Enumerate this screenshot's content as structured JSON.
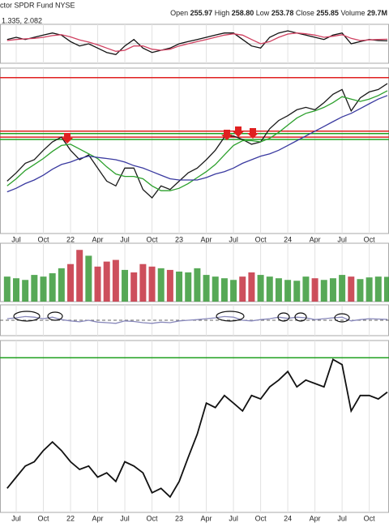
{
  "header": {
    "symbol": "ctor SPDR Fund NYSE",
    "quote": [
      {
        "label": "Open",
        "value": "255.97"
      },
      {
        "label": "High",
        "value": "258.80"
      },
      {
        "label": "Low",
        "value": "253.78"
      },
      {
        "label": "Close",
        "value": "255.85"
      },
      {
        "label": "Volume",
        "value": "29.7M"
      }
    ]
  },
  "chart_data": [
    {
      "type": "line",
      "legend_text": "1.335, 2.082",
      "ylim": [
        -9,
        9
      ],
      "series": [
        {
          "color": "#111111",
          "values": [
            2,
            3,
            2,
            3,
            4,
            5,
            4,
            1,
            -1,
            0,
            -2,
            -4,
            -5,
            -1,
            2,
            -2,
            -4,
            -3,
            -2,
            0,
            1,
            2,
            3,
            4,
            5,
            5,
            2,
            -1,
            -2,
            3,
            5,
            6,
            5,
            4,
            3,
            2,
            4,
            5,
            0,
            1,
            2,
            1.5,
            1.335
          ]
        },
        {
          "color": "#d04060",
          "values": [
            1.5,
            2,
            2.3,
            2.5,
            3,
            3.8,
            4.2,
            3.2,
            1.8,
            0.8,
            -0.5,
            -2,
            -3.5,
            -3,
            -1,
            -1,
            -2.5,
            -3,
            -2.5,
            -1,
            0,
            1,
            2,
            3,
            4,
            4.6,
            4,
            2,
            0,
            1,
            3,
            4.5,
            5,
            4.6,
            4,
            3,
            3.5,
            4.2,
            2.5,
            1.5,
            1.8,
            2,
            2.082
          ]
        }
      ]
    },
    {
      "type": "line",
      "ylim": [
        130,
        269
      ],
      "categories": [
        null,
        "Jul",
        null,
        null,
        "Oct",
        null,
        null,
        "22",
        null,
        null,
        "Apr",
        null,
        null,
        "Jul",
        null,
        null,
        "Oct",
        null,
        null,
        "23",
        null,
        null,
        "Apr",
        null,
        null,
        "Jul",
        null,
        null,
        "Oct",
        null,
        null,
        "24",
        null,
        null,
        "Apr",
        null,
        null,
        "Jul",
        null,
        null,
        "Oct",
        null,
        null
      ],
      "hlines": [
        {
          "value": 261,
          "color": "#e02020"
        },
        {
          "value": 216,
          "color": "#e02020"
        },
        {
          "value": 211,
          "color": "#e02020"
        },
        {
          "value": 214,
          "color": "#20a020"
        },
        {
          "value": 209,
          "color": "#20a020"
        }
      ],
      "series": [
        {
          "color": "#1a1a1a",
          "values": [
            174,
            181,
            189,
            192,
            200,
            207,
            211,
            200,
            192,
            196,
            185,
            174,
            170,
            185,
            185,
            167,
            160,
            170,
            167,
            174,
            181,
            185,
            192,
            200,
            211,
            212,
            209,
            205,
            207,
            218,
            225,
            229,
            234,
            236,
            234,
            240,
            247,
            251,
            233,
            244,
            249,
            251,
            256
          ]
        },
        {
          "color": "#2ca02c",
          "values": [
            170,
            176,
            183,
            188,
            193,
            199,
            204,
            205,
            201,
            197,
            193,
            186,
            180,
            178,
            178,
            176,
            170,
            166,
            166,
            168,
            172,
            177,
            182,
            188,
            196,
            204,
            208,
            208,
            207,
            210,
            215,
            221,
            227,
            231,
            233,
            236,
            240,
            245,
            243,
            241,
            243,
            246,
            250
          ]
        },
        {
          "color": "#3a3aa0",
          "values": [
            165,
            168,
            172,
            175,
            179,
            184,
            188,
            190,
            193,
            195,
            194,
            193,
            192,
            190,
            187,
            185,
            182,
            179,
            176,
            175,
            175,
            175,
            177,
            180,
            182,
            185,
            189,
            192,
            195,
            197,
            200,
            204,
            208,
            212,
            216,
            220,
            224,
            228,
            231,
            235,
            239,
            243,
            246
          ]
        }
      ]
    },
    {
      "type": "bar",
      "ylim": [
        0,
        70
      ],
      "values": [
        30,
        28,
        26,
        32,
        30,
        34,
        40,
        45,
        62,
        55,
        42,
        48,
        50,
        38,
        35,
        45,
        42,
        40,
        38,
        36,
        35,
        40,
        32,
        30,
        28,
        26,
        30,
        35,
        32,
        30,
        28,
        26,
        25,
        30,
        28,
        26,
        28,
        32,
        30,
        27,
        29,
        30,
        29.7
      ],
      "colors": [
        "#3a9a3a",
        "#3a9a3a",
        "#3a9a3a",
        "#3a9a3a",
        "#3a9a3a",
        "#3a9a3a",
        "#3a9a3a",
        "#c43040",
        "#c43040",
        "#3a9a3a",
        "#c43040",
        "#c43040",
        "#c43040",
        "#3a9a3a",
        "#c43040",
        "#c43040",
        "#c43040",
        "#3a9a3a",
        "#c43040",
        "#3a9a3a",
        "#3a9a3a",
        "#3a9a3a",
        "#3a9a3a",
        "#3a9a3a",
        "#3a9a3a",
        "#3a9a3a",
        "#c43040",
        "#c43040",
        "#3a9a3a",
        "#3a9a3a",
        "#3a9a3a",
        "#3a9a3a",
        "#3a9a3a",
        "#3a9a3a",
        "#c43040",
        "#3a9a3a",
        "#3a9a3a",
        "#3a9a3a",
        "#c43040",
        "#3a9a3a",
        "#3a9a3a",
        "#3a9a3a",
        "#3a9a3a"
      ]
    },
    {
      "type": "line",
      "ylim": [
        0,
        100
      ],
      "series": [
        {
          "color": "#8888bb",
          "values": [
            55,
            58,
            62,
            60,
            55,
            60,
            52,
            48,
            45,
            50,
            44,
            42,
            40,
            48,
            46,
            42,
            40,
            44,
            42,
            48,
            50,
            52,
            55,
            58,
            62,
            60,
            50,
            48,
            52,
            55,
            60,
            56,
            60,
            58,
            52,
            55,
            58,
            60,
            48,
            52,
            55,
            54,
            53
          ]
        }
      ]
    },
    {
      "type": "line",
      "ylim": [
        0,
        100
      ],
      "categories": [
        null,
        "Jul",
        null,
        null,
        "Oct",
        null,
        null,
        "22",
        null,
        null,
        "Apr",
        null,
        null,
        "Jul",
        null,
        null,
        "Oct",
        null,
        null,
        "23",
        null,
        null,
        "Apr",
        null,
        null,
        "Jul",
        null,
        null,
        "Oct",
        null,
        null,
        "24",
        null,
        null,
        "Apr",
        null,
        null,
        "Jul",
        null,
        null,
        "Oct",
        null,
        null
      ],
      "hlines": [
        {
          "value": 90,
          "color": "#20a020"
        }
      ],
      "series": [
        {
          "color": "#111111",
          "values": [
            14,
            20.5,
            27,
            29.5,
            36,
            41,
            36,
            29.5,
            25,
            27,
            20.5,
            23,
            18,
            29.5,
            27,
            23,
            11.4,
            14,
            9,
            18,
            32,
            45.5,
            63.6,
            61,
            68,
            63.6,
            59,
            68,
            66,
            73,
            77,
            82,
            73,
            77,
            75,
            73,
            89,
            86,
            59,
            68,
            68,
            66,
            70
          ]
        }
      ]
    }
  ]
}
